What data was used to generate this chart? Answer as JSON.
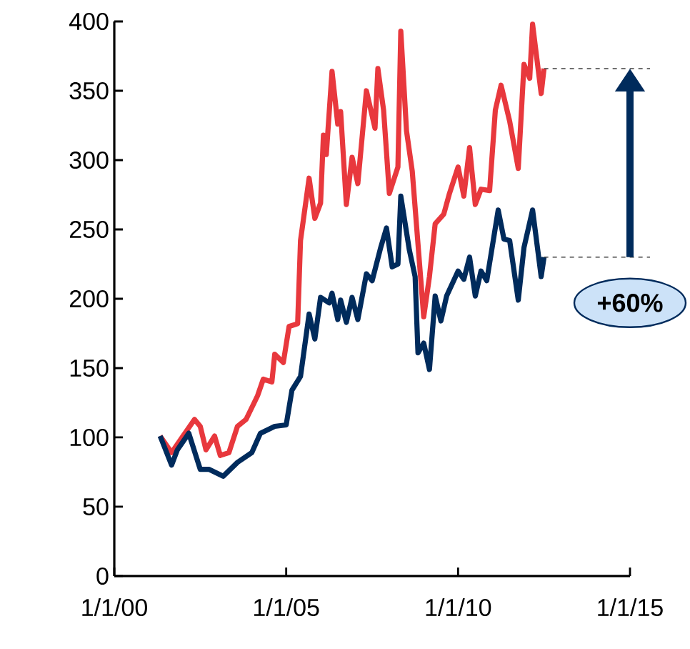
{
  "chart_data": {
    "type": "line",
    "annotations": [
      "+60%"
    ],
    "xlim": [
      "2000-01-01",
      "2015-01-01"
    ],
    "xticks": [
      {
        "value": "2000-01-01",
        "label": "1/1/00"
      },
      {
        "value": "2005-01-01",
        "label": "1/1/05"
      },
      {
        "value": "2010-01-01",
        "label": "1/1/10"
      },
      {
        "value": "2015-01-01",
        "label": "1/1/15"
      }
    ],
    "ylim": [
      0,
      400
    ],
    "yticks": [
      0,
      50,
      100,
      150,
      200,
      250,
      300,
      350,
      400
    ],
    "grid": false,
    "marker": "none",
    "line_style": "solid",
    "ref_lines": [
      {
        "axis": "y",
        "value": 366,
        "label": null,
        "line_style": "dashed",
        "color": "#404040"
      },
      {
        "axis": "y",
        "value": 230,
        "label": null,
        "line_style": "dashed",
        "color": "#404040"
      }
    ],
    "series": [
      {
        "color": "#e8383d",
        "x": [
          "2001-05",
          "2001-09",
          "2002-01",
          "2002-05",
          "2002-07",
          "2002-09",
          "2002-12",
          "2003-02",
          "2003-05",
          "2003-08",
          "2003-11",
          "2004-03",
          "2004-05",
          "2004-08",
          "2004-09",
          "2004-12",
          "2005-02",
          "2005-05",
          "2005-06",
          "2005-09",
          "2005-11",
          "2006-01",
          "2006-02",
          "2006-03",
          "2006-05",
          "2006-07",
          "2006-08",
          "2006-10",
          "2006-12",
          "2007-02",
          "2007-05",
          "2007-08",
          "2007-09",
          "2007-11",
          "2008-01",
          "2008-04",
          "2008-05",
          "2008-07",
          "2008-09",
          "2009-01",
          "2009-03",
          "2009-05",
          "2009-08",
          "2009-10",
          "2010-01",
          "2010-03",
          "2010-05",
          "2010-07",
          "2010-09",
          "2010-12",
          "2011-02",
          "2011-04",
          "2011-07",
          "2011-10",
          "2011-12",
          "2012-02",
          "2012-03",
          "2012-06",
          "2012-07"
        ],
        "values": [
          101,
          89,
          101,
          113,
          108,
          91,
          101,
          87,
          89,
          108,
          113,
          130,
          142,
          140,
          160,
          154,
          180,
          182,
          242,
          287,
          258,
          269,
          318,
          304,
          364,
          326,
          335,
          268,
          302,
          283,
          350,
          323,
          366,
          336,
          276,
          295,
          393,
          321,
          292,
          187,
          216,
          254,
          261,
          276,
          295,
          274,
          309,
          268,
          279,
          278,
          336,
          354,
          328,
          294,
          369,
          359,
          398,
          348,
          366
        ]
      },
      {
        "color": "#002b5c",
        "x": [
          "2001-05",
          "2001-09",
          "2001-11",
          "2002-03",
          "2002-07",
          "2002-10",
          "2003-03",
          "2003-08",
          "2004-01",
          "2004-04",
          "2004-09",
          "2005-01",
          "2005-03",
          "2005-06",
          "2005-09",
          "2005-11",
          "2006-01",
          "2006-04",
          "2006-05",
          "2006-07",
          "2006-08",
          "2006-10",
          "2006-12",
          "2007-02",
          "2007-05",
          "2007-07",
          "2007-10",
          "2007-12",
          "2008-02",
          "2008-04",
          "2008-05",
          "2008-08",
          "2008-10",
          "2008-11",
          "2009-01",
          "2009-03",
          "2009-05",
          "2009-07",
          "2009-09",
          "2010-01",
          "2010-03",
          "2010-05",
          "2010-07",
          "2010-09",
          "2010-11",
          "2011-03",
          "2011-05",
          "2011-07",
          "2011-10",
          "2011-12",
          "2012-03",
          "2012-06",
          "2012-07"
        ],
        "values": [
          101,
          80,
          91,
          103,
          77,
          77,
          72,
          82,
          89,
          103,
          108,
          109,
          134,
          144,
          189,
          171,
          201,
          197,
          204,
          185,
          199,
          183,
          201,
          185,
          218,
          213,
          237,
          251,
          223,
          225,
          274,
          235,
          216,
          161,
          168,
          149,
          202,
          184,
          202,
          220,
          214,
          230,
          202,
          220,
          213,
          264,
          243,
          242,
          199,
          237,
          264,
          216,
          230
        ]
      }
    ]
  }
}
